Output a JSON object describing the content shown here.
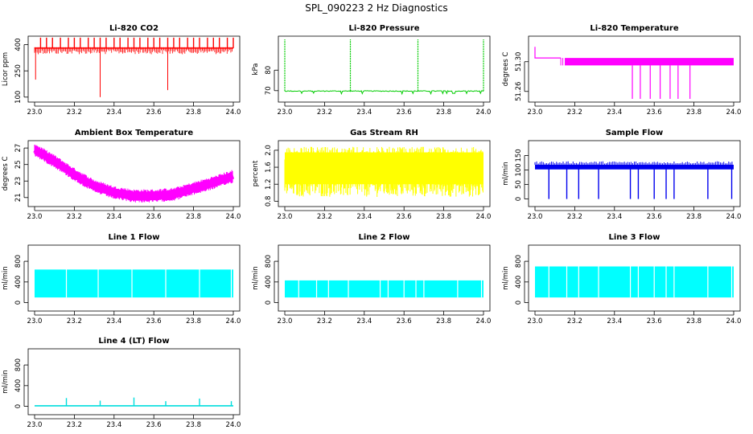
{
  "title": "SPL_090223  2 Hz Diagnostics",
  "chart_data": [
    {
      "type": "line",
      "title": "Li-820 CO2",
      "ylabel": "Licor ppm",
      "color": "#ff0000",
      "style": "spiky",
      "xlim": [
        23.0,
        24.0
      ],
      "ylim": [
        90,
        430
      ],
      "xticks": [
        "23.0",
        "23.2",
        "23.4",
        "23.6",
        "23.8",
        "24.0"
      ],
      "yticks": [
        "100",
        "250",
        "400"
      ],
      "baseline": 380,
      "spike_up": 440,
      "spike_down": [
        {
          "x": 23.33,
          "y": 100
        },
        {
          "x": 23.67,
          "y": 140
        },
        {
          "x": 23.005,
          "y": 200
        }
      ],
      "markers": [
        23.03,
        23.06,
        23.09,
        23.13,
        23.17,
        23.2,
        23.23,
        23.27,
        23.3,
        23.33,
        23.36,
        23.4,
        23.43,
        23.47,
        23.5,
        23.53,
        23.57,
        23.6,
        23.63,
        23.67,
        23.7,
        23.73,
        23.77,
        23.8,
        23.83,
        23.87,
        23.9,
        23.93,
        23.97,
        24.0
      ]
    },
    {
      "type": "line",
      "title": "Li-820 Pressure",
      "ylabel": "kPa",
      "color": "#00cc00",
      "style": "pressure",
      "xlim": [
        23.0,
        24.0
      ],
      "ylim": [
        66,
        95
      ],
      "xticks": [
        "23.0",
        "23.2",
        "23.4",
        "23.6",
        "23.8",
        "24.0"
      ],
      "yticks": [
        "70",
        "80"
      ],
      "baseline": 69.8,
      "spikes": [
        23.0,
        23.33,
        23.67,
        24.0
      ],
      "spike_top": 95
    },
    {
      "type": "line",
      "title": "Li-820 Temperature",
      "ylabel": "degrees C",
      "color": "#ff00ff",
      "style": "temp",
      "xlim": [
        23.0,
        24.0
      ],
      "ylim": [
        51.25,
        51.33
      ],
      "xticks": [
        "23.0",
        "23.2",
        "23.4",
        "23.6",
        "23.8",
        "24.0"
      ],
      "yticks": [
        "51.26",
        "51.30"
      ],
      "start": 51.32,
      "level": 51.305,
      "band_low": 51.295,
      "band_high": 51.302,
      "drops": [
        23.49,
        23.53,
        23.58,
        23.63,
        23.68,
        23.72,
        23.78
      ]
    },
    {
      "type": "line",
      "title": "Ambient Box Temperature",
      "ylabel": "degrees C",
      "color": "#ff00ff",
      "style": "ambient",
      "xlim": [
        23.0,
        24.0
      ],
      "ylim": [
        20.3,
        27.5
      ],
      "xticks": [
        "23.0",
        "23.2",
        "23.4",
        "23.6",
        "23.8",
        "24.0"
      ],
      "yticks": [
        "21",
        "23",
        "25",
        "27"
      ],
      "x": [
        23.0,
        23.1,
        23.2,
        23.3,
        23.4,
        23.5,
        23.6,
        23.7,
        23.8,
        23.9,
        24.0
      ],
      "y": [
        26.8,
        25.4,
        23.8,
        22.4,
        21.6,
        21.2,
        21.2,
        21.4,
        22.1,
        22.8,
        23.6
      ]
    },
    {
      "type": "line",
      "title": "Gas Stream RH",
      "ylabel": "percent",
      "color": "#ffff00",
      "style": "noise",
      "xlim": [
        23.0,
        24.0
      ],
      "ylim": [
        0.75,
        2.15
      ],
      "xticks": [
        "23.0",
        "23.2",
        "23.4",
        "23.6",
        "23.8",
        "24.0"
      ],
      "yticks": [
        "0.8",
        "1.2",
        "1.6",
        "2.0"
      ],
      "low": 0.9,
      "high": 2.08
    },
    {
      "type": "line",
      "title": "Sample Flow",
      "ylabel": "ml/min",
      "color": "#0000ee",
      "style": "flow",
      "xlim": [
        23.0,
        24.0
      ],
      "ylim": [
        -15,
        190
      ],
      "xticks": [
        "23.0",
        "23.2",
        "23.4",
        "23.6",
        "23.8",
        "24.0"
      ],
      "yticks": [
        "0",
        "50",
        "100",
        "150"
      ],
      "level": 110,
      "dips": [
        23.07,
        23.16,
        23.22,
        23.32,
        23.48,
        23.52,
        23.6,
        23.66,
        23.7,
        23.87,
        23.99
      ]
    },
    {
      "type": "area",
      "title": "Line 1 Flow",
      "ylabel": "ml/min",
      "color": "#00ffff",
      "style": "band",
      "xlim": [
        23.0,
        24.0
      ],
      "ylim": [
        -100,
        1050
      ],
      "xticks": [
        "23.0",
        "23.2",
        "23.4",
        "23.6",
        "23.8",
        "24.0"
      ],
      "yticks": [
        "0",
        "400",
        "800"
      ],
      "low": 100,
      "high": 640,
      "gaps": [
        23.16,
        23.32,
        23.49,
        23.66,
        23.83,
        23.99
      ]
    },
    {
      "type": "area",
      "title": "Line 2 Flow",
      "ylabel": "ml/min",
      "color": "#00ffff",
      "style": "band",
      "xlim": [
        23.0,
        24.0
      ],
      "ylim": [
        -100,
        1050
      ],
      "xticks": [
        "23.0",
        "23.2",
        "23.4",
        "23.6",
        "23.8",
        "24.0"
      ],
      "yticks": [
        "0",
        "400",
        "800"
      ],
      "low": 100,
      "high": 430,
      "gaps": [
        23.07,
        23.16,
        23.22,
        23.32,
        23.48,
        23.52,
        23.6,
        23.66,
        23.7,
        23.87,
        23.99
      ]
    },
    {
      "type": "area",
      "title": "Line 3 Flow",
      "ylabel": "ml/min",
      "color": "#00ffff",
      "style": "band",
      "xlim": [
        23.0,
        24.0
      ],
      "ylim": [
        -100,
        1050
      ],
      "xticks": [
        "23.0",
        "23.2",
        "23.4",
        "23.6",
        "23.8",
        "24.0"
      ],
      "yticks": [
        "0",
        "400",
        "800"
      ],
      "low": 100,
      "high": 700,
      "gaps": [
        23.07,
        23.16,
        23.22,
        23.32,
        23.48,
        23.52,
        23.6,
        23.66,
        23.7,
        23.87,
        23.99
      ]
    },
    {
      "type": "line",
      "title": "Line 4 (LT) Flow",
      "ylabel": "ml/min",
      "color": "#00dddd",
      "style": "flat",
      "xlim": [
        23.0,
        24.0
      ],
      "ylim": [
        -100,
        1050
      ],
      "xticks": [
        "23.0",
        "23.2",
        "23.4",
        "23.6",
        "23.8",
        "24.0"
      ],
      "yticks": [
        "0",
        "400",
        "800"
      ],
      "level": 10,
      "spikes": [
        {
          "x": 23.16,
          "y": 160
        },
        {
          "x": 23.33,
          "y": 110
        },
        {
          "x": 23.5,
          "y": 170
        },
        {
          "x": 23.66,
          "y": 100
        },
        {
          "x": 23.83,
          "y": 150
        },
        {
          "x": 23.99,
          "y": 100
        }
      ]
    }
  ]
}
